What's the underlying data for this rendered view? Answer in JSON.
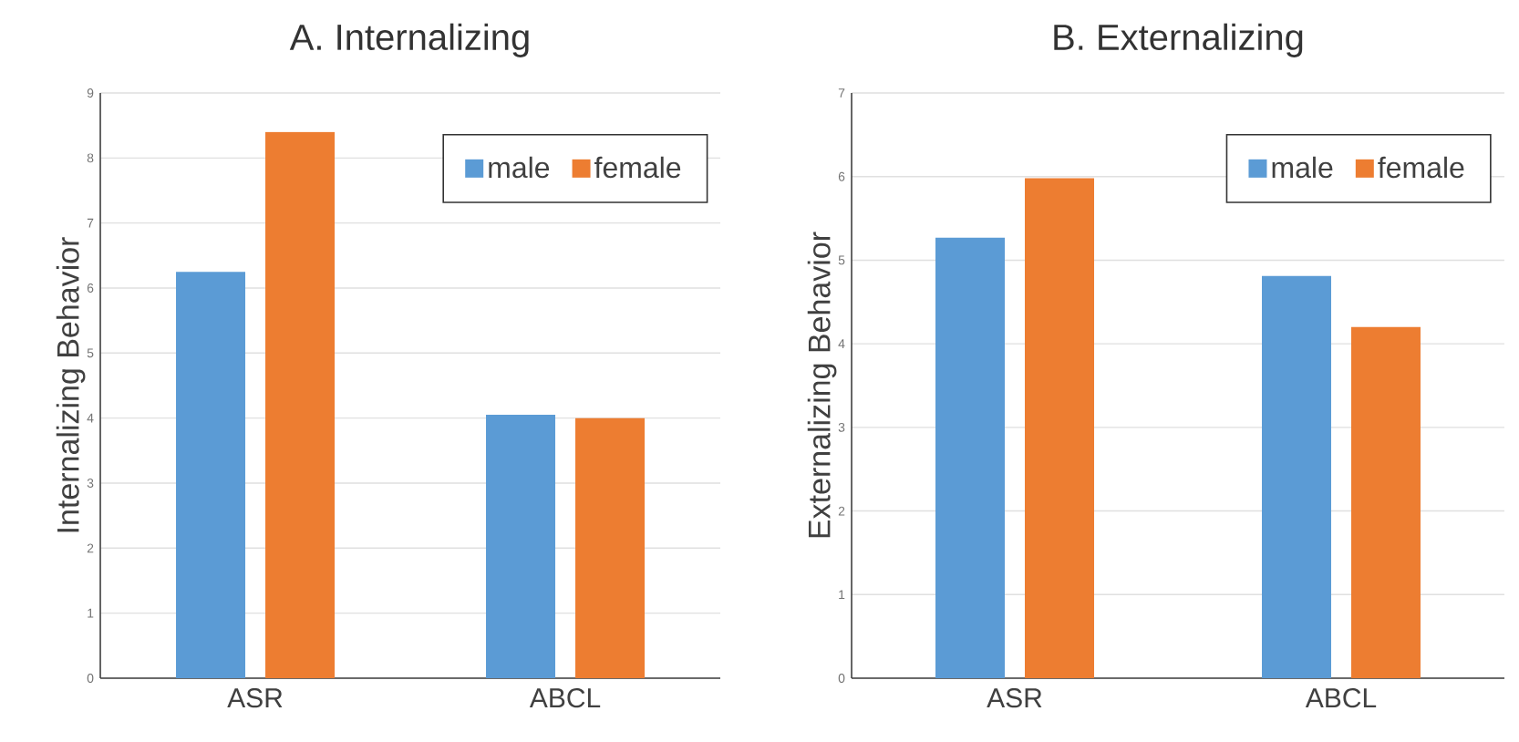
{
  "chart_data": [
    {
      "type": "bar",
      "title": "A. Internalizing",
      "ylabel": "Internalizing  Behavior",
      "categories": [
        "ASR",
        "ABCL"
      ],
      "series": [
        {
          "name": "male",
          "color": "#5b9bd5",
          "values": [
            6.25,
            4.05
          ]
        },
        {
          "name": "female",
          "color": "#ed7d31",
          "values": [
            8.4,
            4.0
          ]
        }
      ],
      "ylim": [
        0,
        9
      ],
      "yticks": [
        0,
        1,
        2,
        3,
        4,
        5,
        6,
        7,
        8,
        9
      ],
      "grid": "y",
      "legend": "top right"
    },
    {
      "type": "bar",
      "title": "B. Externalizing",
      "ylabel": "Externalizing  Behavior",
      "categories": [
        "ASR",
        "ABCL"
      ],
      "series": [
        {
          "name": "male",
          "color": "#5b9bd5",
          "values": [
            5.27,
            4.81
          ]
        },
        {
          "name": "female",
          "color": "#ed7d31",
          "values": [
            5.98,
            4.2
          ]
        }
      ],
      "ylim": [
        0,
        7
      ],
      "yticks": [
        0,
        1,
        2,
        3,
        4,
        5,
        6,
        7
      ],
      "grid": "y",
      "legend": "top right"
    }
  ]
}
